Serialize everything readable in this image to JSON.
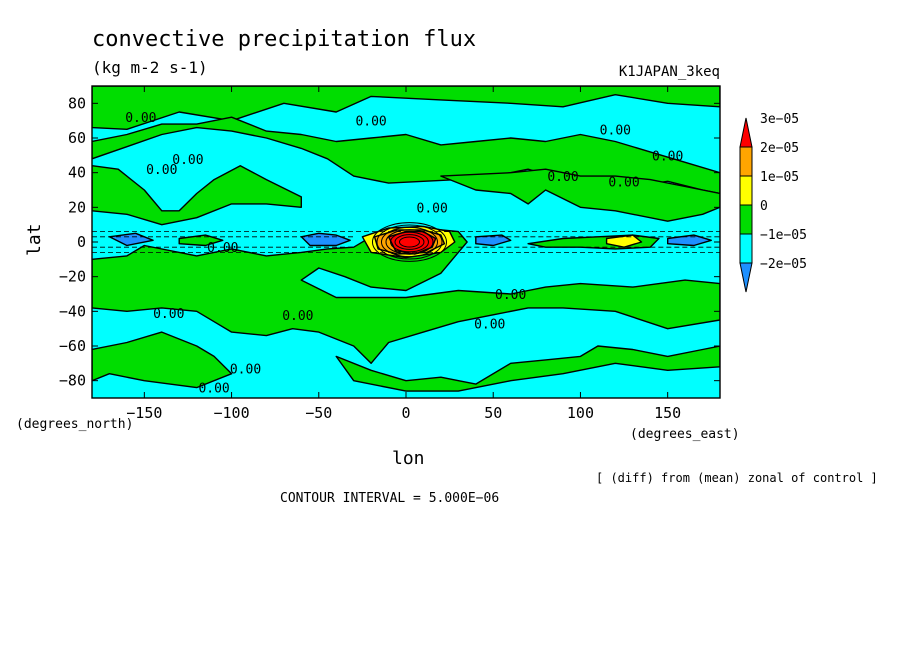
{
  "chart_data": {
    "type": "heatmap",
    "title": "convective precipitation flux",
    "units": "(kg m-2 s-1)",
    "experiment": "K1JAPAN_3keq",
    "xlabel": "lon",
    "ylabel": "lat",
    "x_unit_label": "(degrees_east)",
    "y_unit_label": "(degrees_north)",
    "xlim": [
      -180,
      180
    ],
    "ylim": [
      -90,
      90
    ],
    "x_ticks": [
      -150,
      -100,
      -50,
      0,
      50,
      100,
      150
    ],
    "y_ticks": [
      80,
      60,
      40,
      20,
      0,
      -20,
      -40,
      -60,
      -80
    ],
    "x_tick_labels": [
      "−150",
      "−100",
      "−50",
      "0",
      "50",
      "100",
      "150"
    ],
    "y_tick_labels": [
      "80",
      "60",
      "40",
      "20",
      "0",
      "−20",
      "−40",
      "−60",
      "−80"
    ],
    "colorbar": {
      "levels": [
        -2e-05,
        -1e-05,
        0,
        1e-05,
        2e-05,
        3e-05
      ],
      "labels": [
        "−2e−05",
        "−1e−05",
        "0",
        "1e−05",
        "2e−05",
        "3e−05"
      ],
      "colors": [
        "#1e90ff",
        "#00ffff",
        "#00dd00",
        "#ffff00",
        "#ffa500",
        "#ff0000"
      ]
    },
    "colors": {
      "cyan": "#00ffff",
      "green": "#00dd00",
      "blue": "#1e90ff",
      "yellow": "#ffff00",
      "orange": "#ffa500",
      "red": "#ff0000"
    },
    "contour_label": "0.00",
    "contour_label_count": 16,
    "regions_green": [
      [
        [
          -180,
          90
        ],
        [
          180,
          90
        ],
        [
          180,
          78
        ],
        [
          150,
          80
        ],
        [
          120,
          85
        ],
        [
          90,
          78
        ],
        [
          60,
          80
        ],
        [
          20,
          82
        ],
        [
          -20,
          84
        ],
        [
          -40,
          75
        ],
        [
          -70,
          80
        ],
        [
          -100,
          70
        ],
        [
          -130,
          75
        ],
        [
          -160,
          65
        ],
        [
          -180,
          66
        ]
      ],
      [
        [
          -180,
          48
        ],
        [
          -160,
          55
        ],
        [
          -140,
          62
        ],
        [
          -120,
          66
        ],
        [
          -100,
          64
        ],
        [
          -80,
          60
        ],
        [
          -60,
          54
        ],
        [
          -45,
          48
        ],
        [
          -30,
          38
        ],
        [
          -10,
          34
        ],
        [
          10,
          35
        ],
        [
          30,
          36
        ],
        [
          50,
          38
        ],
        [
          70,
          42
        ],
        [
          90,
          36
        ],
        [
          110,
          36
        ],
        [
          130,
          32
        ],
        [
          150,
          35
        ],
        [
          170,
          30
        ],
        [
          180,
          28
        ],
        [
          180,
          40
        ],
        [
          160,
          46
        ],
        [
          140,
          52
        ],
        [
          120,
          58
        ],
        [
          100,
          62
        ],
        [
          80,
          58
        ],
        [
          60,
          60
        ],
        [
          40,
          58
        ],
        [
          20,
          56
        ],
        [
          0,
          62
        ],
        [
          -20,
          60
        ],
        [
          -40,
          58
        ],
        [
          -60,
          62
        ],
        [
          -80,
          64
        ],
        [
          -100,
          72
        ],
        [
          -120,
          68
        ],
        [
          -140,
          68
        ],
        [
          -160,
          62
        ],
        [
          -180,
          58
        ]
      ],
      [
        [
          -180,
          44
        ],
        [
          -165,
          42
        ],
        [
          -150,
          30
        ],
        [
          -140,
          18
        ],
        [
          -130,
          18
        ],
        [
          -120,
          28
        ],
        [
          -110,
          36
        ],
        [
          -95,
          44
        ],
        [
          -80,
          36
        ],
        [
          -60,
          26
        ],
        [
          -60,
          20
        ],
        [
          -80,
          22
        ],
        [
          -100,
          22
        ],
        [
          -120,
          14
        ],
        [
          -140,
          10
        ],
        [
          -160,
          16
        ],
        [
          -180,
          18
        ]
      ],
      [
        [
          20,
          38
        ],
        [
          40,
          30
        ],
        [
          60,
          28
        ],
        [
          70,
          22
        ],
        [
          80,
          30
        ],
        [
          100,
          20
        ],
        [
          120,
          18
        ],
        [
          150,
          12
        ],
        [
          170,
          16
        ],
        [
          180,
          20
        ],
        [
          180,
          28
        ],
        [
          160,
          32
        ],
        [
          140,
          36
        ],
        [
          120,
          38
        ],
        [
          100,
          38
        ],
        [
          80,
          42
        ],
        [
          60,
          40
        ]
      ],
      [
        [
          -30,
          -3
        ],
        [
          -20,
          3
        ],
        [
          -10,
          7
        ],
        [
          10,
          8
        ],
        [
          30,
          6
        ],
        [
          35,
          0
        ],
        [
          30,
          -6
        ],
        [
          20,
          -18
        ],
        [
          0,
          -28
        ],
        [
          -20,
          -26
        ],
        [
          -35,
          -20
        ],
        [
          -50,
          -15
        ],
        [
          -60,
          -22
        ],
        [
          -40,
          -32
        ],
        [
          -20,
          -32
        ],
        [
          0,
          -32
        ],
        [
          30,
          -28
        ],
        [
          60,
          -30
        ],
        [
          80,
          -26
        ],
        [
          100,
          -24
        ],
        [
          130,
          -26
        ],
        [
          160,
          -22
        ],
        [
          180,
          -24
        ],
        [
          180,
          -45
        ],
        [
          150,
          -50
        ],
        [
          120,
          -40
        ],
        [
          90,
          -38
        ],
        [
          70,
          -38
        ],
        [
          50,
          -42
        ],
        [
          30,
          -46
        ],
        [
          10,
          -52
        ],
        [
          -10,
          -58
        ],
        [
          -20,
          -70
        ],
        [
          -30,
          -60
        ],
        [
          -50,
          -52
        ],
        [
          -65,
          -50
        ],
        [
          -80,
          -54
        ],
        [
          -100,
          -52
        ],
        [
          -110,
          -46
        ],
        [
          -120,
          -40
        ],
        [
          -140,
          -38
        ],
        [
          -160,
          -40
        ],
        [
          -180,
          -38
        ],
        [
          -180,
          -10
        ],
        [
          -160,
          -8
        ],
        [
          -150,
          -2
        ],
        [
          -120,
          -8
        ],
        [
          -100,
          -4
        ],
        [
          -80,
          -8
        ],
        [
          -60,
          -6
        ],
        [
          -45,
          -4
        ]
      ],
      [
        [
          -180,
          -62
        ],
        [
          -160,
          -58
        ],
        [
          -140,
          -52
        ],
        [
          -120,
          -60
        ],
        [
          -110,
          -66
        ],
        [
          -100,
          -76
        ],
        [
          -120,
          -84
        ],
        [
          -150,
          -80
        ],
        [
          -170,
          -76
        ],
        [
          -180,
          -80
        ]
      ],
      [
        [
          -40,
          -66
        ],
        [
          -20,
          -74
        ],
        [
          0,
          -80
        ],
        [
          20,
          -78
        ],
        [
          40,
          -82
        ],
        [
          60,
          -70
        ],
        [
          80,
          -68
        ],
        [
          100,
          -66
        ],
        [
          110,
          -60
        ],
        [
          130,
          -62
        ],
        [
          150,
          -66
        ],
        [
          170,
          -62
        ],
        [
          180,
          -60
        ],
        [
          180,
          -72
        ],
        [
          150,
          -74
        ],
        [
          120,
          -70
        ],
        [
          90,
          -76
        ],
        [
          60,
          -80
        ],
        [
          30,
          -86
        ],
        [
          0,
          -86
        ],
        [
          -30,
          -80
        ]
      ],
      [
        [
          70,
          -1
        ],
        [
          90,
          2
        ],
        [
          110,
          3
        ],
        [
          130,
          4
        ],
        [
          145,
          2
        ],
        [
          140,
          -3
        ],
        [
          120,
          -4
        ],
        [
          100,
          -3
        ],
        [
          80,
          -3
        ]
      ],
      [
        [
          -130,
          2
        ],
        [
          -115,
          4
        ],
        [
          -105,
          1
        ],
        [
          -115,
          -2
        ],
        [
          -130,
          -1
        ]
      ]
    ],
    "regions_blue": [
      [
        [
          -60,
          3
        ],
        [
          -50,
          5
        ],
        [
          -40,
          4
        ],
        [
          -32,
          1
        ],
        [
          -40,
          -2
        ],
        [
          -55,
          -2
        ]
      ],
      [
        [
          -170,
          3
        ],
        [
          -155,
          5
        ],
        [
          -145,
          1
        ],
        [
          -160,
          -2
        ]
      ],
      [
        [
          40,
          3
        ],
        [
          55,
          4
        ],
        [
          60,
          1
        ],
        [
          50,
          -2
        ],
        [
          40,
          -1
        ]
      ],
      [
        [
          150,
          2
        ],
        [
          165,
          4
        ],
        [
          175,
          1
        ],
        [
          165,
          -2
        ],
        [
          150,
          -1
        ]
      ]
    ],
    "regions_yellow": [
      [
        [
          -25,
          3
        ],
        [
          -10,
          8
        ],
        [
          10,
          9
        ],
        [
          25,
          6
        ],
        [
          28,
          0
        ],
        [
          20,
          -6
        ],
        [
          0,
          -9
        ],
        [
          -20,
          -6
        ]
      ],
      [
        [
          115,
          2
        ],
        [
          130,
          4
        ],
        [
          135,
          0
        ],
        [
          125,
          -3
        ],
        [
          115,
          -1
        ]
      ]
    ],
    "regions_orange": [
      [
        [
          -18,
          3
        ],
        [
          -5,
          7
        ],
        [
          10,
          7
        ],
        [
          20,
          4
        ],
        [
          22,
          -1
        ],
        [
          12,
          -6
        ],
        [
          -5,
          -7
        ],
        [
          -16,
          -4
        ]
      ]
    ],
    "regions_red": [
      [
        [
          -10,
          3
        ],
        [
          0,
          6
        ],
        [
          10,
          6
        ],
        [
          17,
          2
        ],
        [
          15,
          -3
        ],
        [
          5,
          -7
        ],
        [
          -6,
          -5
        ]
      ]
    ],
    "footnote": "[ (diff) from (mean) zonal of control ]",
    "contour_interval": "CONTOUR INTERVAL = 5.000E−06"
  }
}
